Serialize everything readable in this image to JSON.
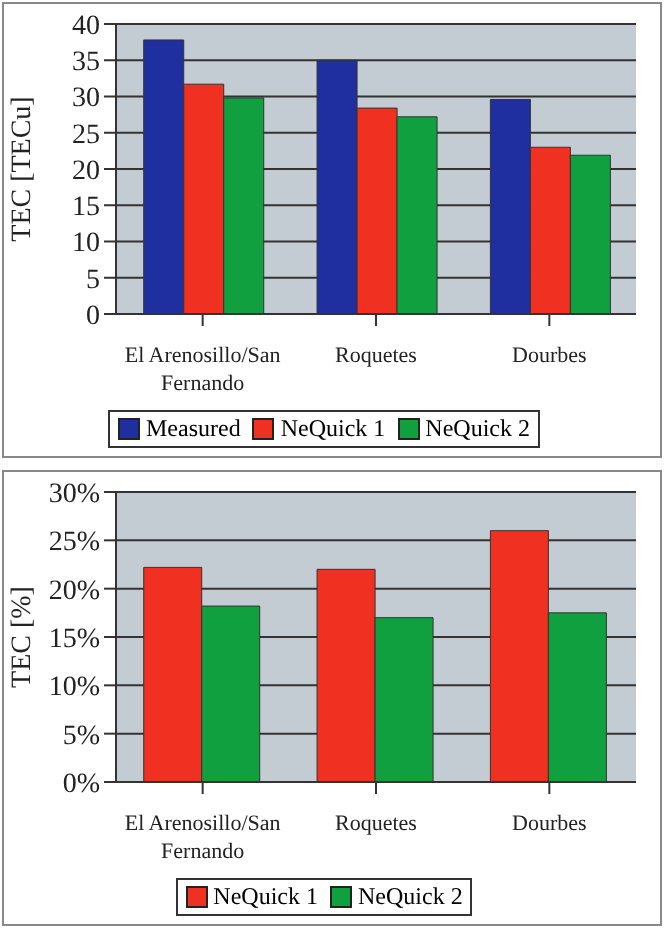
{
  "chart_data": [
    {
      "type": "bar",
      "ylabel": "TEC [TECu]",
      "categories": [
        "El Arenosillo/San Fernando",
        "Roquetes",
        "Dourbes"
      ],
      "series": [
        {
          "name": "Measured",
          "color": "#1f2fa0",
          "values": [
            37.8,
            35,
            29.6
          ]
        },
        {
          "name": "NeQuick 1",
          "color": "#f03020",
          "values": [
            31.7,
            28.4,
            23
          ]
        },
        {
          "name": "NeQuick 2",
          "color": "#10a040",
          "values": [
            29.8,
            27.2,
            21.9
          ]
        }
      ],
      "ylim": [
        0,
        40
      ],
      "yticks": [
        0,
        5,
        10,
        15,
        20,
        25,
        30,
        35,
        40
      ],
      "grid": "y",
      "legend": "bottom"
    },
    {
      "type": "bar",
      "ylabel": "TEC [%]",
      "categories": [
        "El Arenosillo/San Fernando",
        "Roquetes",
        "Dourbes"
      ],
      "series": [
        {
          "name": "NeQuick 1",
          "color": "#f03020",
          "values": [
            22.2,
            22,
            26
          ]
        },
        {
          "name": "NeQuick 2",
          "color": "#10a040",
          "values": [
            18.2,
            17,
            17.5
          ]
        }
      ],
      "ylim": [
        0,
        30
      ],
      "yticks": [
        {
          "value": 0,
          "label": "0%"
        },
        {
          "value": 5,
          "label": "5%"
        },
        {
          "value": 10,
          "label": "10%"
        },
        {
          "value": 15,
          "label": "15%"
        },
        {
          "value": 20,
          "label": "20%"
        },
        {
          "value": 25,
          "label": "25%"
        },
        {
          "value": 30,
          "label": "30%"
        }
      ],
      "grid": "y",
      "legend": "bottom"
    }
  ]
}
